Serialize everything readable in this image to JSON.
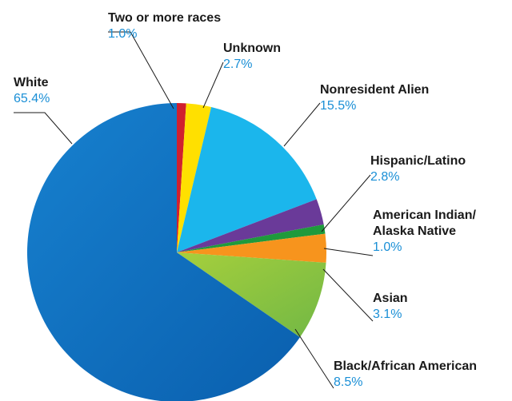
{
  "chart_data": {
    "type": "pie",
    "title": "",
    "legend": "none",
    "slices": [
      {
        "name": "Two or more races",
        "label_lines": [
          "Two or more races"
        ],
        "value": 1.0,
        "value_label": "1.0%",
        "color": "#d0202e"
      },
      {
        "name": "Unknown",
        "label_lines": [
          "Unknown"
        ],
        "value": 2.7,
        "value_label": "2.7%",
        "color": "#ffe000"
      },
      {
        "name": "Nonresident Alien",
        "label_lines": [
          "Nonresident Alien"
        ],
        "value": 15.5,
        "value_label": "15.5%",
        "color": "#1bb6ec"
      },
      {
        "name": "Hispanic/Latino",
        "label_lines": [
          "Hispanic/Latino"
        ],
        "value": 2.8,
        "value_label": "2.8%",
        "color": "#6a3a99"
      },
      {
        "name": "American Indian/ Alaska Native",
        "label_lines": [
          "American Indian/",
          "Alaska Native"
        ],
        "value": 1.0,
        "value_label": "1.0%",
        "color": "#1f9a3c"
      },
      {
        "name": "Asian",
        "label_lines": [
          "Asian"
        ],
        "value": 3.1,
        "value_label": "3.1%",
        "color": "#f7941d"
      },
      {
        "name": "Black/African American",
        "label_lines": [
          "Black/African American"
        ],
        "value": 8.5,
        "value_label": "8.5%",
        "color": "#8cc63f"
      },
      {
        "name": "White",
        "label_lines": [
          "White"
        ],
        "value": 65.4,
        "value_label": "65.4%",
        "color": "#0e77c6"
      }
    ]
  }
}
